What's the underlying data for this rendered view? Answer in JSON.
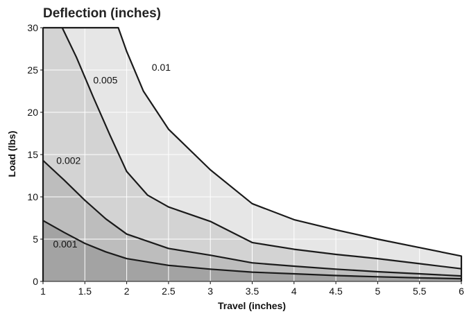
{
  "chart_data": {
    "type": "area",
    "title": "Deflection (inches)",
    "xlabel": "Travel (inches)",
    "ylabel": "Load (lbs)",
    "xlim": [
      1,
      6
    ],
    "ylim": [
      0,
      30
    ],
    "x_ticks": [
      "1",
      "1.5",
      "2",
      "2.5",
      "3",
      "3.5",
      "4",
      "4.5",
      "5",
      "5.5",
      "6"
    ],
    "y_ticks": [
      "0",
      "5",
      "10",
      "15",
      "20",
      "25",
      "30"
    ],
    "grid": true,
    "region_colors": [
      "#a3a3a3",
      "#bdbdbd",
      "#d3d3d3",
      "#e6e6e6"
    ],
    "series": [
      {
        "name": "0.001",
        "x": [
          1,
          1.25,
          1.5,
          1.75,
          2,
          2.5,
          3,
          3.5,
          4,
          4.5,
          5,
          5.5,
          6
        ],
        "y": [
          7.2,
          5.8,
          4.5,
          3.5,
          2.7,
          1.9,
          1.45,
          1.1,
          0.9,
          0.7,
          0.55,
          0.42,
          0.32
        ]
      },
      {
        "name": "0.002",
        "x": [
          1,
          1.25,
          1.5,
          1.75,
          2,
          2.5,
          3,
          3.5,
          4,
          4.5,
          5,
          5.5,
          6
        ],
        "y": [
          14.3,
          12.0,
          9.6,
          7.4,
          5.6,
          3.9,
          3.1,
          2.2,
          1.8,
          1.45,
          1.15,
          0.9,
          0.65
        ]
      },
      {
        "name": "0.005",
        "x": [
          1.23,
          1.4,
          1.6,
          1.8,
          2,
          2.25,
          2.5,
          3,
          3.5,
          4,
          4.5,
          5,
          5.5,
          6
        ],
        "y": [
          30,
          26.5,
          21.8,
          17.3,
          13.0,
          10.2,
          8.8,
          7.1,
          4.6,
          3.8,
          3.2,
          2.7,
          2.1,
          1.5
        ]
      },
      {
        "name": "0.01",
        "x": [
          1,
          1.9,
          2.0,
          2.2,
          2.5,
          3,
          3.5,
          4,
          4.5,
          5,
          5.5,
          6,
          6
        ],
        "y": [
          30,
          30,
          27.2,
          22.5,
          18.0,
          13.2,
          9.2,
          7.3,
          6.1,
          5.0,
          4.0,
          3.0,
          0
        ]
      }
    ],
    "labels": [
      {
        "text": "0.001",
        "x": 1.12,
        "y": 4.0
      },
      {
        "text": "0.002",
        "x": 1.16,
        "y": 13.9
      },
      {
        "text": "0.005",
        "x": 1.6,
        "y": 23.4
      },
      {
        "text": "0.01",
        "x": 2.3,
        "y": 24.9
      }
    ]
  }
}
